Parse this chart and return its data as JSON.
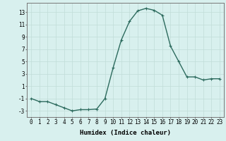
{
  "x": [
    0,
    1,
    2,
    3,
    4,
    5,
    6,
    7,
    8,
    9,
    10,
    11,
    12,
    13,
    14,
    15,
    16,
    17,
    18,
    19,
    20,
    21,
    22,
    23
  ],
  "y": [
    -1,
    -1.5,
    -1.5,
    -2,
    -2.5,
    -3,
    -2.8,
    -2.8,
    -2.7,
    -1,
    4,
    8.5,
    11.5,
    13.2,
    13.6,
    13.3,
    12.5,
    7.5,
    5,
    2.5,
    2.5,
    2,
    2.2,
    2.2
  ],
  "line_color": "#2d6b5e",
  "marker": "+",
  "marker_size": 3,
  "bg_color": "#d8f0ee",
  "grid_color": "#c0ddd8",
  "xlabel": "Humidex (Indice chaleur)",
  "xlim": [
    -0.5,
    23.5
  ],
  "ylim": [
    -4,
    14.5
  ],
  "yticks": [
    -3,
    -1,
    1,
    3,
    5,
    7,
    9,
    11,
    13
  ],
  "xticks": [
    0,
    1,
    2,
    3,
    4,
    5,
    6,
    7,
    8,
    9,
    10,
    11,
    12,
    13,
    14,
    15,
    16,
    17,
    18,
    19,
    20,
    21,
    22,
    23
  ],
  "xtick_labels": [
    "0",
    "1",
    "2",
    "3",
    "4",
    "5",
    "6",
    "7",
    "8",
    "9",
    "10",
    "11",
    "12",
    "13",
    "14",
    "15",
    "16",
    "17",
    "18",
    "19",
    "20",
    "21",
    "22",
    "23"
  ],
  "line_width": 1.0,
  "tick_fontsize": 5.5,
  "xlabel_fontsize": 6.5
}
